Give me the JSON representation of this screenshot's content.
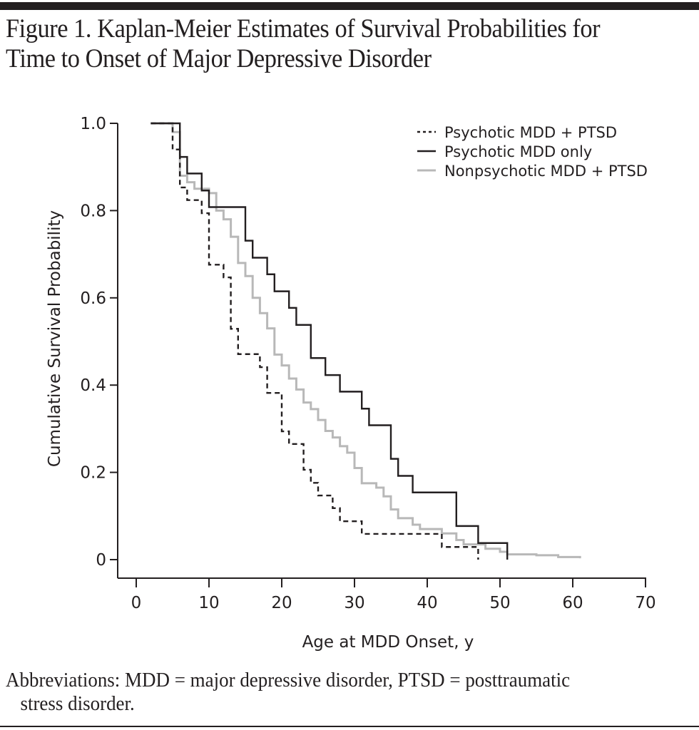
{
  "figure": {
    "title_line1": "Figure 1. Kaplan-Meier Estimates of Survival Probabilities for",
    "title_line2": "Time to Onset of Major Depressive Disorder",
    "footnote_line1": "Abbreviations: MDD = major depressive disorder, PTSD = posttraumatic",
    "footnote_line2": "stress disorder."
  },
  "chart_data": {
    "type": "line",
    "subtype": "kaplan-meier-step",
    "title": "Kaplan-Meier Estimates of Survival Probabilities for Time to Onset of Major Depressive Disorder",
    "xlabel": "Age at MDD Onset, y",
    "ylabel": "Cumulative Survival Probability",
    "xlim": [
      0,
      70
    ],
    "ylim": [
      0,
      1.0
    ],
    "x_ticks": [
      0,
      10,
      20,
      30,
      40,
      50,
      60,
      70
    ],
    "x_tick_labels": [
      "0",
      "10",
      "20",
      "30",
      "40",
      "50",
      "60",
      "70"
    ],
    "y_ticks": [
      0,
      0.2,
      0.4,
      0.6,
      0.8,
      1.0
    ],
    "y_tick_labels": [
      "0",
      "0.2",
      "0.4",
      "0.6",
      "0.8",
      "1.0"
    ],
    "grid": false,
    "legend_position": "top-right",
    "series": [
      {
        "name": "Psychotic MDD + PTSD",
        "style": "dashed",
        "color": "#231f20",
        "steps": [
          [
            2,
            1.0
          ],
          [
            5,
            0.94
          ],
          [
            6,
            0.853
          ],
          [
            7,
            0.824
          ],
          [
            9,
            0.794
          ],
          [
            10,
            0.676
          ],
          [
            12,
            0.647
          ],
          [
            13,
            0.529
          ],
          [
            14,
            0.471
          ],
          [
            17,
            0.441
          ],
          [
            18,
            0.382
          ],
          [
            20,
            0.294
          ],
          [
            21,
            0.265
          ],
          [
            23,
            0.206
          ],
          [
            24,
            0.176
          ],
          [
            25,
            0.147
          ],
          [
            27,
            0.118
          ],
          [
            28,
            0.088
          ],
          [
            31,
            0.059
          ],
          [
            42,
            0.029
          ],
          [
            47,
            0.0
          ]
        ],
        "end": 47
      },
      {
        "name": "Psychotic MDD only",
        "style": "solid",
        "color": "#231f20",
        "steps": [
          [
            2,
            1.0
          ],
          [
            6,
            0.923
          ],
          [
            7,
            0.885
          ],
          [
            9,
            0.846
          ],
          [
            10,
            0.808
          ],
          [
            15,
            0.731
          ],
          [
            16,
            0.692
          ],
          [
            18,
            0.654
          ],
          [
            19,
            0.615
          ],
          [
            21,
            0.577
          ],
          [
            22,
            0.538
          ],
          [
            24,
            0.462
          ],
          [
            26,
            0.423
          ],
          [
            28,
            0.385
          ],
          [
            31,
            0.346
          ],
          [
            32,
            0.308
          ],
          [
            35,
            0.231
          ],
          [
            36,
            0.192
          ],
          [
            38,
            0.154
          ],
          [
            44,
            0.077
          ],
          [
            47,
            0.038
          ],
          [
            51,
            0.0
          ]
        ],
        "end": 51
      },
      {
        "name": "Nonpsychotic MDD + PTSD",
        "style": "solid",
        "color": "#b8b8b8",
        "steps": [
          [
            2,
            1.0
          ],
          [
            5,
            0.98
          ],
          [
            6,
            0.88
          ],
          [
            7,
            0.865
          ],
          [
            8,
            0.85
          ],
          [
            10,
            0.84
          ],
          [
            11,
            0.8
          ],
          [
            12,
            0.78
          ],
          [
            13,
            0.74
          ],
          [
            14,
            0.68
          ],
          [
            15,
            0.65
          ],
          [
            16,
            0.6
          ],
          [
            17,
            0.565
          ],
          [
            18,
            0.53
          ],
          [
            19,
            0.47
          ],
          [
            20,
            0.445
          ],
          [
            21,
            0.415
          ],
          [
            22,
            0.39
          ],
          [
            23,
            0.36
          ],
          [
            24,
            0.345
          ],
          [
            25,
            0.32
          ],
          [
            26,
            0.295
          ],
          [
            27,
            0.28
          ],
          [
            28,
            0.26
          ],
          [
            29,
            0.245
          ],
          [
            30,
            0.21
          ],
          [
            31,
            0.175
          ],
          [
            33,
            0.165
          ],
          [
            34,
            0.145
          ],
          [
            35,
            0.115
          ],
          [
            36,
            0.095
          ],
          [
            38,
            0.08
          ],
          [
            39,
            0.07
          ],
          [
            42,
            0.06
          ],
          [
            44,
            0.045
          ],
          [
            45,
            0.035
          ],
          [
            48,
            0.025
          ],
          [
            50,
            0.018
          ],
          [
            51,
            0.012
          ],
          [
            55,
            0.01
          ],
          [
            58,
            0.006
          ],
          [
            61,
            0.003
          ]
        ],
        "end": 61
      }
    ]
  }
}
